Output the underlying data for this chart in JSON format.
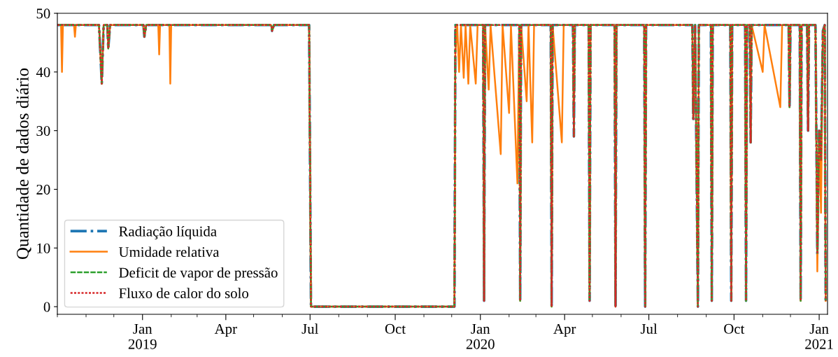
{
  "chart_data": {
    "type": "line",
    "ylabel": "Quantidade de dados diário",
    "xlim": [
      "2018-10-01",
      "2021-01-10"
    ],
    "ylim": [
      -1.3,
      50
    ],
    "yticks": [
      0,
      10,
      20,
      30,
      40,
      50
    ],
    "xticks": [
      {
        "value": "2018-10-01",
        "label": null
      },
      {
        "value": "2018-11-01",
        "label": null
      },
      {
        "value": "2018-12-01",
        "label": null
      },
      {
        "value": "2019-01-01",
        "label": "Jan\n2019"
      },
      {
        "value": "2019-02-01",
        "label": null
      },
      {
        "value": "2019-03-01",
        "label": null
      },
      {
        "value": "2019-04-01",
        "label": "Apr"
      },
      {
        "value": "2019-05-01",
        "label": null
      },
      {
        "value": "2019-06-01",
        "label": null
      },
      {
        "value": "2019-07-01",
        "label": "Jul"
      },
      {
        "value": "2019-08-01",
        "label": null
      },
      {
        "value": "2019-09-01",
        "label": null
      },
      {
        "value": "2019-10-01",
        "label": "Oct"
      },
      {
        "value": "2019-11-01",
        "label": null
      },
      {
        "value": "2019-12-01",
        "label": null
      },
      {
        "value": "2020-01-01",
        "label": "Jan\n2020"
      },
      {
        "value": "2020-02-01",
        "label": null
      },
      {
        "value": "2020-03-01",
        "label": null
      },
      {
        "value": "2020-04-01",
        "label": "Apr"
      },
      {
        "value": "2020-05-01",
        "label": null
      },
      {
        "value": "2020-06-01",
        "label": null
      },
      {
        "value": "2020-07-01",
        "label": "Jul"
      },
      {
        "value": "2020-08-01",
        "label": null
      },
      {
        "value": "2020-09-01",
        "label": null
      },
      {
        "value": "2020-10-01",
        "label": "Oct"
      },
      {
        "value": "2020-11-01",
        "label": null
      },
      {
        "value": "2020-12-01",
        "label": null
      },
      {
        "value": "2021-01-01",
        "label": "Jan\n2021"
      }
    ],
    "grid": false,
    "legend": "bottom left",
    "marker": "none",
    "series": [
      {
        "name": "Radiação líquida",
        "color": "#1f77b4",
        "line_style": "dashdot",
        "x": [
          "2018-10-01",
          "2018-11-15",
          "2018-11-18",
          "2018-11-20",
          "2018-11-24",
          "2018-11-25",
          "2018-11-27",
          "2019-01-02",
          "2019-01-03",
          "2019-01-05",
          "2019-05-20",
          "2019-05-21",
          "2019-05-23",
          "2019-06-30",
          "2019-07-02",
          "2019-12-04",
          "2019-12-05",
          "2020-01-04",
          "2020-01-05",
          "2020-01-06",
          "2020-02-12",
          "2020-02-13",
          "2020-02-14",
          "2020-03-17",
          "2020-03-18",
          "2020-03-19",
          "2020-04-10",
          "2020-04-11",
          "2020-04-12",
          "2020-04-27",
          "2020-04-28",
          "2020-04-29",
          "2020-05-25",
          "2020-05-26",
          "2020-05-27",
          "2020-06-26",
          "2020-06-27",
          "2020-06-28",
          "2020-08-17",
          "2020-08-18",
          "2020-08-20",
          "2020-08-23",
          "2020-08-24",
          "2020-09-06",
          "2020-09-07",
          "2020-09-08",
          "2020-09-27",
          "2020-09-28",
          "2020-09-29",
          "2020-10-13",
          "2020-10-14",
          "2020-10-15",
          "2020-10-18",
          "2020-10-19",
          "2020-10-20",
          "2020-11-29",
          "2020-11-30",
          "2020-12-01",
          "2020-12-11",
          "2020-12-12",
          "2020-12-13",
          "2020-12-19",
          "2020-12-20",
          "2020-12-21",
          "2020-12-28",
          "2020-12-30",
          "2021-01-01",
          "2021-01-03",
          "2021-01-05",
          "2021-01-07",
          "2021-01-08"
        ],
        "values": [
          48,
          48,
          38,
          48,
          48,
          44,
          48,
          48,
          46,
          48,
          48,
          47,
          48,
          48,
          0,
          0,
          48,
          48,
          1,
          48,
          48,
          1,
          48,
          48,
          0,
          48,
          48,
          29,
          48,
          48,
          1,
          48,
          48,
          0,
          48,
          48,
          0,
          48,
          48,
          32,
          48,
          0,
          48,
          48,
          1,
          48,
          48,
          1,
          48,
          48,
          1,
          48,
          48,
          28,
          48,
          48,
          34,
          48,
          48,
          1,
          48,
          48,
          30,
          48,
          48,
          9,
          30,
          25,
          47,
          48,
          1
        ]
      },
      {
        "name": "Umidade relativa",
        "color": "#ff7f0e",
        "line_style": "solid",
        "x": [
          "2018-10-01",
          "2018-10-05",
          "2018-10-06",
          "2018-10-07",
          "2018-10-19",
          "2018-10-20",
          "2018-10-21",
          "2018-11-15",
          "2018-11-18",
          "2018-11-20",
          "2018-11-24",
          "2018-11-25",
          "2018-11-27",
          "2019-01-02",
          "2019-01-03",
          "2019-01-05",
          "2019-01-18",
          "2019-01-19",
          "2019-01-20",
          "2019-01-30",
          "2019-01-31",
          "2019-02-01",
          "2019-05-20",
          "2019-05-21",
          "2019-05-23",
          "2019-06-30",
          "2019-07-02",
          "2019-12-04",
          "2019-12-05",
          "2019-12-07",
          "2019-12-09",
          "2019-12-11",
          "2019-12-14",
          "2019-12-16",
          "2019-12-19",
          "2019-12-21",
          "2019-12-27",
          "2019-12-29",
          "2020-01-04",
          "2020-01-05",
          "2020-01-06",
          "2020-01-10",
          "2020-01-12",
          "2020-01-23",
          "2020-01-25",
          "2020-02-01",
          "2020-02-03",
          "2020-02-10",
          "2020-02-12",
          "2020-02-13",
          "2020-02-14",
          "2020-02-20",
          "2020-02-22",
          "2020-02-26",
          "2020-02-28",
          "2020-03-17",
          "2020-03-18",
          "2020-03-19",
          "2020-03-29",
          "2020-03-31",
          "2020-04-10",
          "2020-04-11",
          "2020-04-12",
          "2020-04-27",
          "2020-04-28",
          "2020-04-29",
          "2020-05-25",
          "2020-05-26",
          "2020-05-27",
          "2020-06-26",
          "2020-06-27",
          "2020-06-28",
          "2020-08-17",
          "2020-08-18",
          "2020-08-20",
          "2020-08-23",
          "2020-08-24",
          "2020-09-06",
          "2020-09-07",
          "2020-09-08",
          "2020-09-27",
          "2020-09-28",
          "2020-09-29",
          "2020-10-13",
          "2020-10-14",
          "2020-10-15",
          "2020-10-18",
          "2020-10-19",
          "2020-10-20",
          "2020-11-01",
          "2020-11-03",
          "2020-11-20",
          "2020-11-22",
          "2020-11-29",
          "2020-11-30",
          "2020-12-01",
          "2020-12-11",
          "2020-12-12",
          "2020-12-13",
          "2020-12-19",
          "2020-12-20",
          "2020-12-21",
          "2020-12-28",
          "2020-12-30",
          "2021-01-01",
          "2021-01-03",
          "2021-01-05",
          "2021-01-07",
          "2021-01-08"
        ],
        "values": [
          48,
          48,
          40,
          48,
          48,
          46,
          48,
          48,
          38,
          48,
          48,
          44,
          48,
          48,
          46,
          48,
          48,
          43,
          48,
          48,
          38,
          48,
          48,
          47,
          48,
          48,
          0,
          0,
          43,
          48,
          40,
          48,
          39,
          48,
          38,
          48,
          38,
          48,
          48,
          1,
          48,
          37,
          48,
          26,
          48,
          33,
          48,
          21,
          48,
          1,
          48,
          35,
          48,
          28,
          48,
          48,
          0,
          48,
          28,
          48,
          48,
          29,
          48,
          48,
          1,
          48,
          48,
          0,
          48,
          48,
          0,
          48,
          48,
          32,
          48,
          0,
          48,
          48,
          1,
          48,
          48,
          1,
          48,
          48,
          1,
          48,
          48,
          28,
          48,
          40,
          48,
          34,
          48,
          48,
          34,
          48,
          48,
          1,
          48,
          48,
          30,
          48,
          48,
          6,
          30,
          16,
          47,
          48,
          1
        ]
      },
      {
        "name": "Deficit de vapor de pressão",
        "color": "#2ca02c",
        "line_style": "dashed",
        "x": [
          "2018-10-01",
          "2018-11-15",
          "2018-11-18",
          "2018-11-20",
          "2018-11-24",
          "2018-11-25",
          "2018-11-27",
          "2019-01-02",
          "2019-01-03",
          "2019-01-05",
          "2019-05-20",
          "2019-05-21",
          "2019-05-23",
          "2019-06-30",
          "2019-07-02",
          "2019-12-04",
          "2019-12-05",
          "2020-01-04",
          "2020-01-05",
          "2020-01-06",
          "2020-02-12",
          "2020-02-13",
          "2020-02-14",
          "2020-03-17",
          "2020-03-18",
          "2020-03-19",
          "2020-04-10",
          "2020-04-11",
          "2020-04-12",
          "2020-04-27",
          "2020-04-28",
          "2020-04-29",
          "2020-05-25",
          "2020-05-26",
          "2020-05-27",
          "2020-06-26",
          "2020-06-27",
          "2020-06-28",
          "2020-08-17",
          "2020-08-18",
          "2020-08-20",
          "2020-08-23",
          "2020-08-24",
          "2020-09-06",
          "2020-09-07",
          "2020-09-08",
          "2020-09-27",
          "2020-09-28",
          "2020-09-29",
          "2020-10-13",
          "2020-10-14",
          "2020-10-15",
          "2020-10-18",
          "2020-10-19",
          "2020-10-20",
          "2020-11-29",
          "2020-11-30",
          "2020-12-01",
          "2020-12-11",
          "2020-12-12",
          "2020-12-13",
          "2020-12-19",
          "2020-12-20",
          "2020-12-21",
          "2020-12-28",
          "2020-12-30",
          "2021-01-01",
          "2021-01-03",
          "2021-01-05",
          "2021-01-07",
          "2021-01-08"
        ],
        "values": [
          48,
          48,
          38,
          48,
          48,
          44,
          48,
          48,
          46,
          48,
          48,
          47,
          48,
          48,
          0,
          0,
          48,
          48,
          1,
          48,
          48,
          1,
          48,
          48,
          0,
          48,
          48,
          29,
          48,
          48,
          1,
          48,
          48,
          0,
          48,
          48,
          0,
          48,
          48,
          32,
          48,
          0,
          48,
          48,
          1,
          48,
          48,
          1,
          48,
          48,
          1,
          48,
          48,
          28,
          48,
          48,
          34,
          48,
          48,
          1,
          48,
          48,
          30,
          48,
          48,
          9,
          30,
          25,
          47,
          48,
          1
        ]
      },
      {
        "name": "Fluxo de calor do solo",
        "color": "#d62728",
        "line_style": "dotted",
        "x": [
          "2018-10-01",
          "2018-11-15",
          "2018-11-18",
          "2018-11-20",
          "2018-11-24",
          "2018-11-25",
          "2018-11-27",
          "2019-01-02",
          "2019-01-03",
          "2019-01-05",
          "2019-05-20",
          "2019-05-21",
          "2019-05-23",
          "2019-06-30",
          "2019-07-02",
          "2019-12-04",
          "2019-12-05",
          "2020-01-04",
          "2020-01-05",
          "2020-01-06",
          "2020-02-12",
          "2020-02-13",
          "2020-02-14",
          "2020-03-17",
          "2020-03-18",
          "2020-03-19",
          "2020-04-10",
          "2020-04-11",
          "2020-04-12",
          "2020-04-27",
          "2020-04-28",
          "2020-04-29",
          "2020-05-25",
          "2020-05-26",
          "2020-05-27",
          "2020-06-26",
          "2020-06-27",
          "2020-06-28",
          "2020-08-17",
          "2020-08-18",
          "2020-08-20",
          "2020-08-23",
          "2020-08-24",
          "2020-09-06",
          "2020-09-07",
          "2020-09-08",
          "2020-09-27",
          "2020-09-28",
          "2020-09-29",
          "2020-10-13",
          "2020-10-14",
          "2020-10-15",
          "2020-10-18",
          "2020-10-19",
          "2020-10-20",
          "2020-11-29",
          "2020-11-30",
          "2020-12-01",
          "2020-12-11",
          "2020-12-12",
          "2020-12-13",
          "2020-12-19",
          "2020-12-20",
          "2020-12-21",
          "2020-12-28",
          "2020-12-30",
          "2021-01-01",
          "2021-01-03",
          "2021-01-05",
          "2021-01-07",
          "2021-01-08"
        ],
        "values": [
          48,
          48,
          38,
          48,
          48,
          44,
          48,
          48,
          46,
          48,
          48,
          47,
          48,
          48,
          0,
          0,
          48,
          48,
          1,
          48,
          48,
          1,
          48,
          48,
          0,
          48,
          48,
          29,
          48,
          48,
          1,
          48,
          48,
          0,
          48,
          48,
          0,
          48,
          48,
          32,
          48,
          0,
          48,
          48,
          1,
          48,
          48,
          1,
          48,
          48,
          1,
          48,
          48,
          28,
          48,
          48,
          34,
          48,
          48,
          1,
          48,
          48,
          30,
          48,
          48,
          9,
          30,
          25,
          47,
          48,
          1
        ]
      }
    ]
  }
}
